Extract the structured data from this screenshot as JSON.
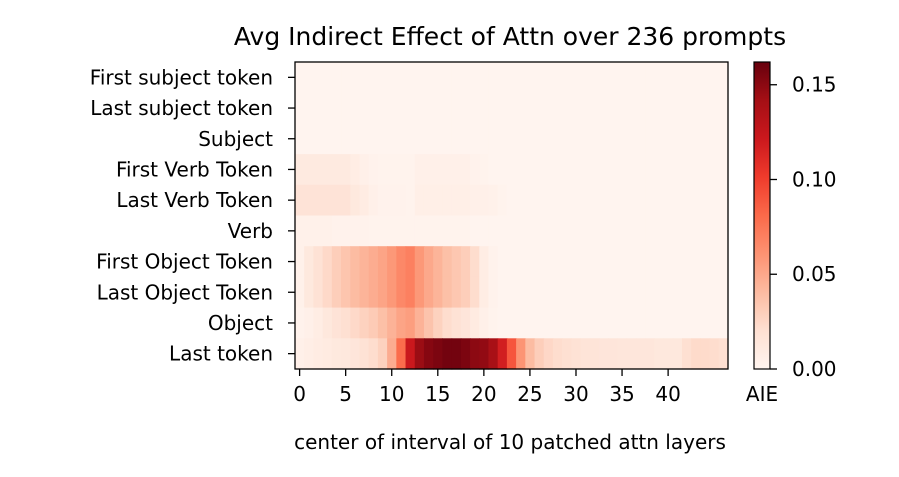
{
  "chart_data": {
    "type": "heatmap",
    "title": "Avg Indirect Effect of Attn over 236 prompts",
    "xlabel": "center of interval of 10 patched attn layers",
    "ylabel": "",
    "row_labels": [
      "First subject token",
      "Last subject token",
      "Subject",
      "First Verb Token",
      "Last Verb Token",
      "Verb",
      "First Object Token",
      "Last Object Token",
      "Object",
      "Last token"
    ],
    "x_ticks": [
      0,
      5,
      10,
      15,
      20,
      25,
      30,
      35,
      40
    ],
    "x_range": [
      0,
      47
    ],
    "colorbar": {
      "label": "AIE",
      "colormap": "Reds",
      "range": [
        0,
        0.162
      ],
      "ticks": [
        0.0,
        0.05,
        0.1,
        0.15
      ],
      "tick_labels": [
        "0.00",
        "0.05",
        "0.10",
        "0.15"
      ]
    },
    "values": [
      [
        0.001,
        0.001,
        0.001,
        0.001,
        0.001,
        0.001,
        0.001,
        0.001,
        0.001,
        0.001,
        0.001,
        0.001,
        0.001,
        0.001,
        0.001,
        0.001,
        0.001,
        0.001,
        0.001,
        0.001,
        0.001,
        0.001,
        0.001,
        0.001,
        0.001,
        0.001,
        0.001,
        0.001,
        0.001,
        0.001,
        0.001,
        0.001,
        0.001,
        0.001,
        0.001,
        0.001,
        0.001,
        0.001,
        0.001,
        0.001,
        0.001,
        0.001,
        0.001,
        0.001,
        0.001,
        0.001,
        0.001
      ],
      [
        0.001,
        0.001,
        0.001,
        0.001,
        0.001,
        0.001,
        0.001,
        0.001,
        0.001,
        0.001,
        0.001,
        0.001,
        0.001,
        0.001,
        0.001,
        0.001,
        0.001,
        0.001,
        0.001,
        0.001,
        0.001,
        0.001,
        0.001,
        0.001,
        0.001,
        0.001,
        0.001,
        0.001,
        0.001,
        0.001,
        0.001,
        0.001,
        0.001,
        0.001,
        0.001,
        0.001,
        0.001,
        0.001,
        0.001,
        0.001,
        0.001,
        0.001,
        0.001,
        0.001,
        0.001,
        0.001,
        0.001
      ],
      [
        0.001,
        0.001,
        0.001,
        0.001,
        0.001,
        0.001,
        0.001,
        0.001,
        0.001,
        0.001,
        0.001,
        0.001,
        0.001,
        0.001,
        0.001,
        0.001,
        0.001,
        0.001,
        0.001,
        0.001,
        0.001,
        0.001,
        0.001,
        0.001,
        0.001,
        0.001,
        0.001,
        0.001,
        0.001,
        0.001,
        0.001,
        0.001,
        0.001,
        0.001,
        0.001,
        0.001,
        0.001,
        0.001,
        0.001,
        0.001,
        0.001,
        0.001,
        0.001,
        0.001,
        0.001,
        0.001,
        0.001
      ],
      [
        0.011,
        0.011,
        0.011,
        0.011,
        0.011,
        0.011,
        0.008,
        0.005,
        0.003,
        0.002,
        0.002,
        0.002,
        0.002,
        0.005,
        0.005,
        0.005,
        0.005,
        0.005,
        0.005,
        0.003,
        0.002,
        0.001,
        0.001,
        0.001,
        0.001,
        0.001,
        0.001,
        0.001,
        0.001,
        0.001,
        0.001,
        0.001,
        0.001,
        0.001,
        0.001,
        0.001,
        0.001,
        0.001,
        0.001,
        0.001,
        0.001,
        0.001,
        0.001,
        0.001,
        0.001,
        0.001,
        0.001
      ],
      [
        0.017,
        0.017,
        0.017,
        0.017,
        0.017,
        0.017,
        0.012,
        0.009,
        0.005,
        0.003,
        0.003,
        0.003,
        0.002,
        0.006,
        0.006,
        0.006,
        0.006,
        0.006,
        0.006,
        0.005,
        0.005,
        0.004,
        0.002,
        0.001,
        0.001,
        0.001,
        0.001,
        0.001,
        0.001,
        0.001,
        0.001,
        0.001,
        0.001,
        0.001,
        0.001,
        0.001,
        0.001,
        0.001,
        0.001,
        0.001,
        0.001,
        0.001,
        0.001,
        0.001,
        0.001,
        0.001,
        0.001
      ],
      [
        0.004,
        0.004,
        0.004,
        0.004,
        0.003,
        0.003,
        0.003,
        0.003,
        0.002,
        0.002,
        0.002,
        0.002,
        0.002,
        0.002,
        0.002,
        0.002,
        0.002,
        0.002,
        0.002,
        0.001,
        0.001,
        0.001,
        0.001,
        0.001,
        0.001,
        0.001,
        0.001,
        0.001,
        0.001,
        0.001,
        0.001,
        0.001,
        0.001,
        0.001,
        0.001,
        0.001,
        0.001,
        0.001,
        0.001,
        0.001,
        0.001,
        0.001,
        0.001,
        0.001,
        0.001,
        0.001,
        0.001
      ],
      [
        0.004,
        0.012,
        0.018,
        0.024,
        0.03,
        0.035,
        0.04,
        0.044,
        0.048,
        0.052,
        0.058,
        0.066,
        0.07,
        0.058,
        0.05,
        0.044,
        0.038,
        0.034,
        0.03,
        0.022,
        0.008,
        0.003,
        0.001,
        0.001,
        0.001,
        0.001,
        0.001,
        0.001,
        0.001,
        0.001,
        0.001,
        0.001,
        0.001,
        0.001,
        0.001,
        0.001,
        0.001,
        0.001,
        0.001,
        0.001,
        0.001,
        0.001,
        0.001,
        0.001,
        0.001,
        0.001,
        0.001
      ],
      [
        0.004,
        0.012,
        0.018,
        0.024,
        0.03,
        0.035,
        0.04,
        0.044,
        0.048,
        0.052,
        0.058,
        0.066,
        0.07,
        0.058,
        0.05,
        0.044,
        0.038,
        0.034,
        0.03,
        0.022,
        0.008,
        0.003,
        0.001,
        0.001,
        0.001,
        0.001,
        0.001,
        0.001,
        0.001,
        0.001,
        0.001,
        0.001,
        0.001,
        0.001,
        0.001,
        0.001,
        0.001,
        0.001,
        0.001,
        0.001,
        0.001,
        0.001,
        0.001,
        0.001,
        0.001,
        0.001,
        0.001
      ],
      [
        0.003,
        0.005,
        0.008,
        0.013,
        0.017,
        0.02,
        0.024,
        0.028,
        0.032,
        0.038,
        0.045,
        0.052,
        0.055,
        0.045,
        0.036,
        0.028,
        0.022,
        0.018,
        0.015,
        0.01,
        0.005,
        0.002,
        0.001,
        0.001,
        0.001,
        0.001,
        0.001,
        0.001,
        0.001,
        0.001,
        0.001,
        0.001,
        0.001,
        0.001,
        0.001,
        0.001,
        0.001,
        0.001,
        0.001,
        0.001,
        0.001,
        0.001,
        0.001,
        0.001,
        0.001,
        0.001,
        0.001
      ],
      [
        0.005,
        0.007,
        0.009,
        0.01,
        0.012,
        0.013,
        0.015,
        0.018,
        0.022,
        0.028,
        0.048,
        0.08,
        0.122,
        0.145,
        0.152,
        0.155,
        0.158,
        0.158,
        0.155,
        0.15,
        0.148,
        0.14,
        0.118,
        0.09,
        0.06,
        0.04,
        0.03,
        0.025,
        0.022,
        0.02,
        0.018,
        0.016,
        0.016,
        0.015,
        0.015,
        0.014,
        0.014,
        0.014,
        0.014,
        0.013,
        0.013,
        0.013,
        0.02,
        0.023,
        0.023,
        0.022,
        0.02
      ]
    ]
  }
}
